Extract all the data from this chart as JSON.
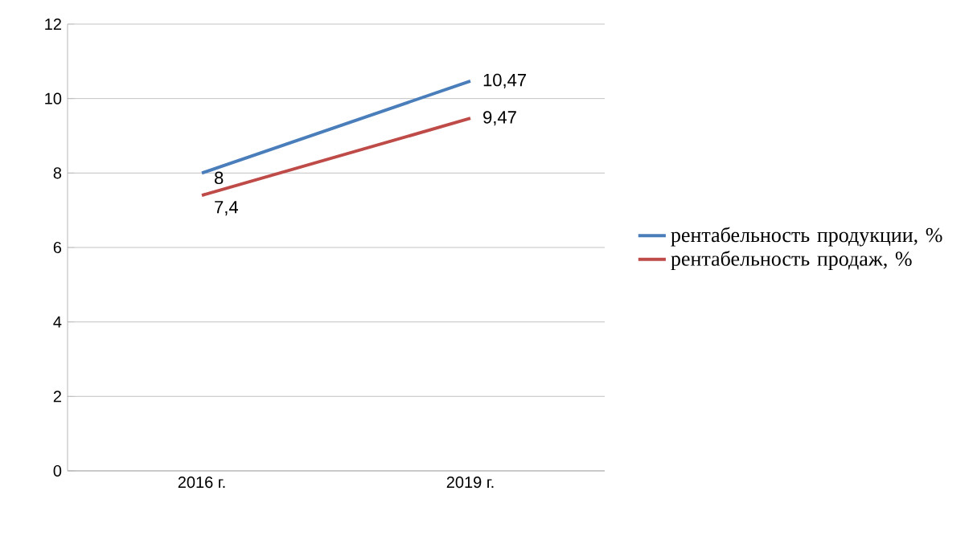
{
  "chart_data": {
    "type": "line",
    "categories": [
      "2016 г.",
      "2019 г."
    ],
    "series": [
      {
        "name": "рентабельность продукции, %",
        "color": "#4a7ebb",
        "values": [
          8,
          10.47
        ],
        "value_labels": [
          "8",
          "10,47"
        ]
      },
      {
        "name": "рентабельность продаж, %",
        "color": "#be4b48",
        "values": [
          7.4,
          9.47
        ],
        "value_labels": [
          "7,4",
          "9,47"
        ]
      }
    ],
    "ylim": [
      0,
      12
    ],
    "yticks": [
      0,
      2,
      4,
      6,
      8,
      10,
      12
    ],
    "grid": "y",
    "legend": "right",
    "marker": "none",
    "line_style": "solid"
  }
}
